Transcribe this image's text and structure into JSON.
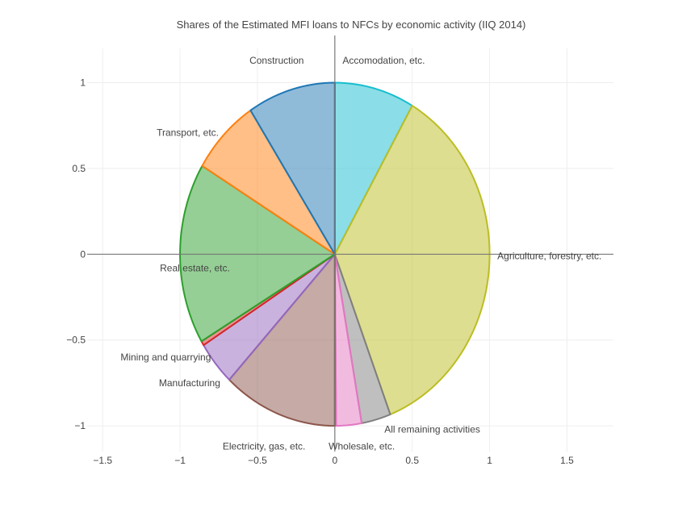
{
  "chart_data": {
    "type": "area",
    "title": "Shares of the Estimated MFI loans to NFCs by economic activity (IIQ 2014)",
    "xlabel": "",
    "ylabel": "",
    "xlim": [
      -1.6,
      1.8
    ],
    "ylim": [
      -1.15,
      1.2
    ],
    "x_ticks": [
      -1.5,
      -1,
      -0.5,
      0,
      0.5,
      1,
      1.5
    ],
    "x_tick_labels": [
      "−1.5",
      "−1",
      "−0.5",
      "0",
      "0.5",
      "1",
      "1.5"
    ],
    "y_ticks": [
      1,
      0.5,
      0,
      -0.5,
      -1
    ],
    "y_tick_labels": [
      "1",
      "0.5",
      "0",
      "−0.5",
      "−1"
    ],
    "grid": true,
    "legend": "none",
    "series": [
      {
        "name": "Accomodation, etc.",
        "start_deg": 90,
        "end_deg": 60,
        "color": "#17becf"
      },
      {
        "name": "Agriculture, forestry, etc.",
        "start_deg": 60,
        "end_deg": -69,
        "color": "#bcbd22"
      },
      {
        "name": "All remaining activities",
        "start_deg": -69,
        "end_deg": -80,
        "color": "#7f7f7f"
      },
      {
        "name": "Wholesale, etc.",
        "start_deg": -80,
        "end_deg": -89.5,
        "color": "#e377c2"
      },
      {
        "name": "Electricity, gas, etc.",
        "start_deg": -89.5,
        "end_deg": -90,
        "color": "#e377c2"
      },
      {
        "name": "",
        "start_deg": -90,
        "end_deg": -133,
        "color": "#8c564b"
      },
      {
        "name": "Manufacturing",
        "start_deg": -133,
        "end_deg": -148,
        "color": "#9467bd"
      },
      {
        "name": "Mining and quarrying",
        "start_deg": -148,
        "end_deg": -149.5,
        "color": "#d62728"
      },
      {
        "name": "Real estate, etc.",
        "start_deg": -149.5,
        "end_deg": -211,
        "color": "#2ca02c"
      },
      {
        "name": "Transport, etc.",
        "start_deg": -211,
        "end_deg": -237,
        "color": "#ff7f0e"
      },
      {
        "name": "Construction",
        "start_deg": -237,
        "end_deg": -270,
        "color": "#1f77b4"
      }
    ],
    "annotations": [
      {
        "text": "Construction",
        "x": -0.2,
        "y": 1.13,
        "anchor": "end"
      },
      {
        "text": "Accomodation, etc.",
        "x": 0.05,
        "y": 1.13,
        "anchor": "start"
      },
      {
        "text": "Transport, etc.",
        "x": -0.75,
        "y": 0.71,
        "anchor": "end"
      },
      {
        "text": "Agriculture, forestry, etc.",
        "x": 1.05,
        "y": -0.01,
        "anchor": "start"
      },
      {
        "text": "Real estate, etc.",
        "x": -1.13,
        "y": -0.08,
        "anchor": "start"
      },
      {
        "text": "Mining and quarrying",
        "x": -0.8,
        "y": -0.6,
        "anchor": "end"
      },
      {
        "text": "Manufacturing",
        "x": -0.74,
        "y": -0.75,
        "anchor": "end"
      },
      {
        "text": "All remaining activities",
        "x": 0.32,
        "y": -1.02,
        "anchor": "start"
      },
      {
        "text": "Electricity, gas, etc.",
        "x": -0.19,
        "y": -1.12,
        "anchor": "end"
      },
      {
        "text": "Wholesale, etc.",
        "x": -0.04,
        "y": -1.12,
        "anchor": "start"
      }
    ]
  }
}
